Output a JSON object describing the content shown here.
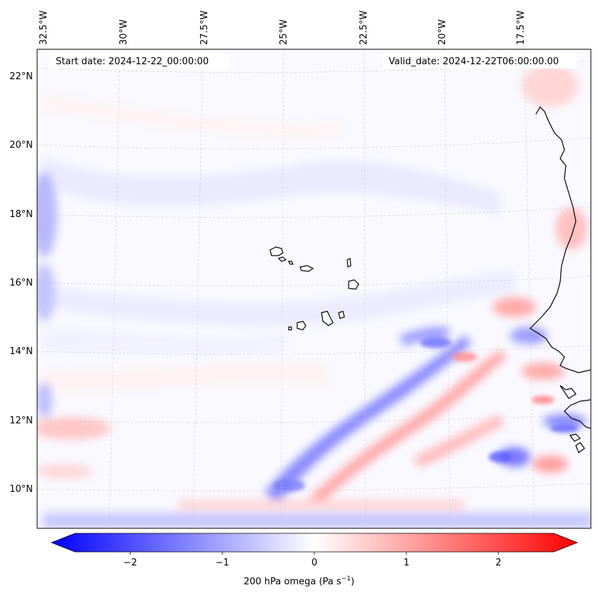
{
  "header": {
    "start_date": "Start date: 2024-12-22_00:00:00",
    "valid_date": "Valid_date: 2024-12-22T06:00:00.00"
  },
  "axes": {
    "lon_labels": [
      "32.5°W",
      "30°W",
      "27.5°W",
      "25°W",
      "22.5°W",
      "20°W",
      "17.5°W"
    ],
    "lat_labels": [
      "22°N",
      "20°N",
      "18°N",
      "16°N",
      "14°N",
      "12°N",
      "10°N"
    ]
  },
  "colorbar": {
    "ticks": [
      "−2",
      "−1",
      "0",
      "1",
      "2"
    ],
    "tick_values": [
      -2,
      -1,
      0,
      1,
      2
    ],
    "range": [
      -2.6,
      2.6
    ],
    "colors": {
      "negative": "#0000ff",
      "zero": "#ffffff",
      "positive": "#ff0000"
    },
    "title_text": "200 hPa omega (Pa s",
    "title_sup": "−1",
    "title_close": ")"
  },
  "map": {
    "field_colormap": "bwr",
    "gridlines": true
  }
}
